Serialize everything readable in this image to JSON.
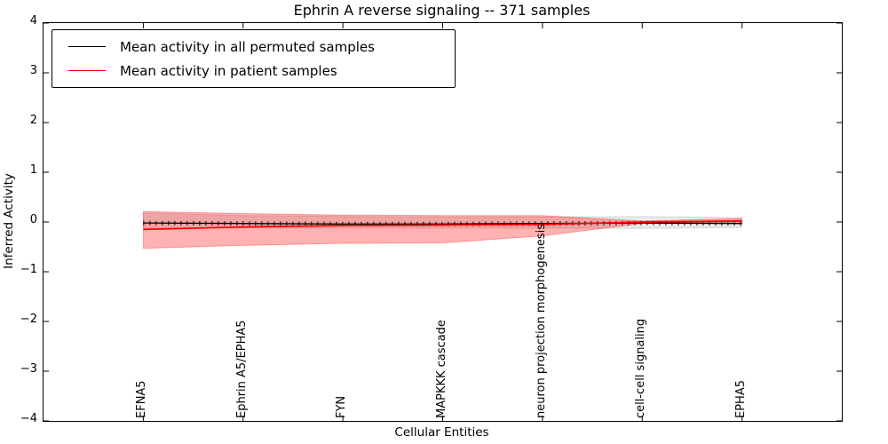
{
  "title": "Ephrin A  reverse signaling -- 371 samples",
  "sample_count": "371",
  "legend": {
    "items": [
      {
        "label": "Mean activity in all permuted samples",
        "color": "#000000"
      },
      {
        "label": "Mean activity in patient samples",
        "color": "#ff0000"
      }
    ]
  },
  "axes": {
    "xlabel": "Cellular Entities",
    "ylabel": "Inferred Activity",
    "ytick_labels": [
      "4",
      "3",
      "2",
      "1",
      "0",
      "−1",
      "−2",
      "−3",
      "−4"
    ],
    "ytick_values": [
      4,
      3,
      2,
      1,
      0,
      -1,
      -2,
      -3,
      -4
    ]
  },
  "colors": {
    "permuted_line": "#000000",
    "permuted_band": "#808080",
    "patient_line": "#ff0000",
    "patient_band": "#ff0000",
    "frame": "#000000",
    "background": "#ffffff"
  },
  "chart_data": {
    "type": "line",
    "title": "Ephrin A  reverse signaling -- 371 samples",
    "xlabel": "Cellular Entities",
    "ylabel": "Inferred Activity",
    "ylim": [
      -4,
      4
    ],
    "yticks": [
      4,
      3,
      2,
      1,
      0,
      -1,
      -2,
      -3,
      -4
    ],
    "grid": false,
    "legend_position": "upper left",
    "categories": [
      "EFNA5",
      "Ephrin A5/EPHA5",
      "FYN",
      "MAPKKK cascade",
      "neuron projection morphogenesis",
      "cell-cell signaling",
      "EPHA5"
    ],
    "series": [
      {
        "name": "Mean activity in all permuted samples",
        "color": "#000000",
        "marker": "dense-vertical-ticks",
        "values": [
          -0.02,
          -0.03,
          -0.04,
          -0.04,
          -0.03,
          -0.02,
          -0.03
        ],
        "band_upper": [
          0.18,
          0.13,
          0.11,
          0.1,
          0.1,
          0.11,
          0.09
        ],
        "band_lower": [
          -0.12,
          -0.12,
          -0.12,
          -0.12,
          -0.12,
          -0.13,
          -0.11
        ],
        "band_color": "#808080",
        "band_opacity": 0.17
      },
      {
        "name": "Mean activity in patient samples",
        "color": "#ff0000",
        "marker": "none",
        "values": [
          -0.15,
          -0.1,
          -0.07,
          -0.06,
          -0.05,
          0.0,
          0.02
        ],
        "band_upper": [
          0.21,
          0.17,
          0.14,
          0.13,
          0.13,
          0.02,
          0.07
        ],
        "band_lower": [
          -0.53,
          -0.47,
          -0.43,
          -0.42,
          -0.28,
          -0.03,
          -0.03
        ],
        "band_color": "#ff0000",
        "band_opacity": 0.3
      }
    ]
  }
}
